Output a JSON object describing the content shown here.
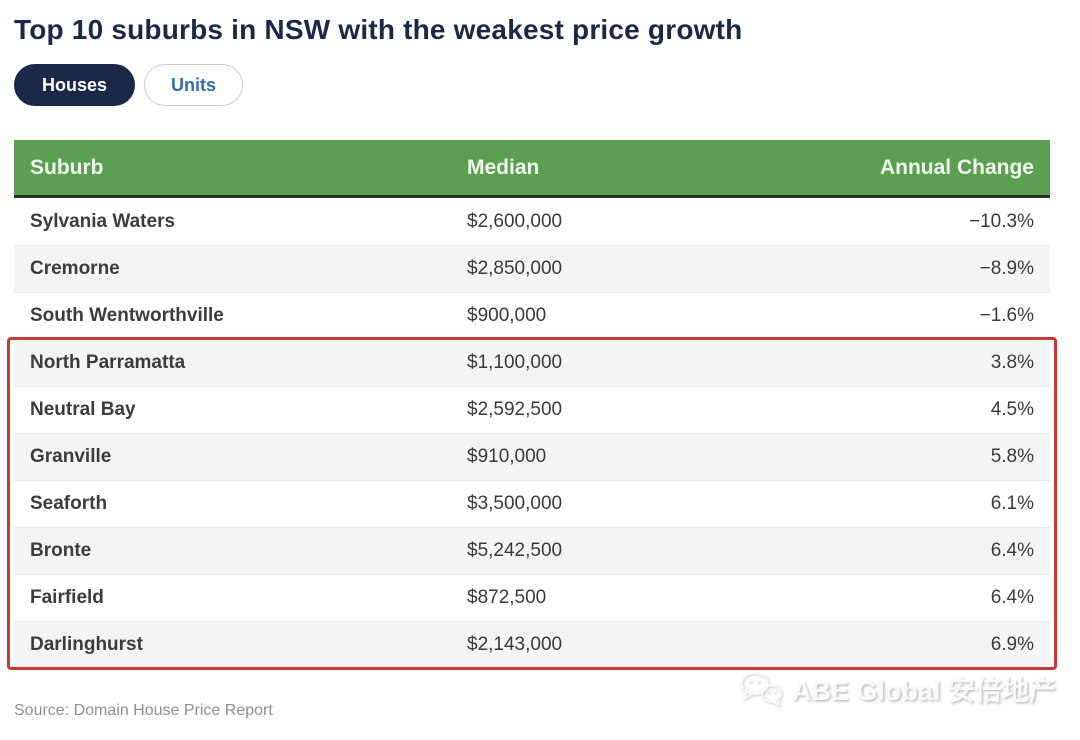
{
  "page": {
    "title": "Top 10 suburbs in NSW with the weakest price growth",
    "source_note": "Source: Domain House Price Report"
  },
  "tabs": {
    "houses_label": "Houses",
    "units_label": "Units",
    "active": "Houses"
  },
  "chart_data": {
    "type": "table",
    "title": "Top 10 suburbs in NSW with the weakest price growth",
    "columns": [
      "Suburb",
      "Median",
      "Annual Change"
    ],
    "rows": [
      [
        "Sylvania Waters",
        "$2,600,000",
        "−10.3%"
      ],
      [
        "Cremorne",
        "$2,850,000",
        "−8.9%"
      ],
      [
        "South Wentworthville",
        "$900,000",
        "−1.6%"
      ],
      [
        "North Parramatta",
        "$1,100,000",
        "3.8%"
      ],
      [
        "Neutral Bay",
        "$2,592,500",
        "4.5%"
      ],
      [
        "Granville",
        "$910,000",
        "5.8%"
      ],
      [
        "Seaforth",
        "$3,500,000",
        "6.1%"
      ],
      [
        "Bronte",
        "$5,242,500",
        "6.4%"
      ],
      [
        "Fairfield",
        "$872,500",
        "6.4%"
      ],
      [
        "Darlinghurst",
        "$2,143,000",
        "6.9%"
      ]
    ],
    "highlight_box": {
      "start_index": 3,
      "end_index": 9,
      "first_row": "North Parramatta",
      "last_row": "Darlinghurst",
      "color": "#c33d31"
    }
  },
  "watermark": {
    "text": "ABE Global 安倍地产",
    "icon": "wechat-logo"
  },
  "colors": {
    "title_navy": "#1b2947",
    "header_green": "#5aa050",
    "header_text": "#f2f8ef",
    "header_underline": "#2d2d2d",
    "alt_row_bg": "#f4f4f4",
    "highlight_red": "#c33d31",
    "tab_active_bg": "#1b2947",
    "tab_inactive_text": "#366cac",
    "source_gray": "#8f8f8f"
  }
}
